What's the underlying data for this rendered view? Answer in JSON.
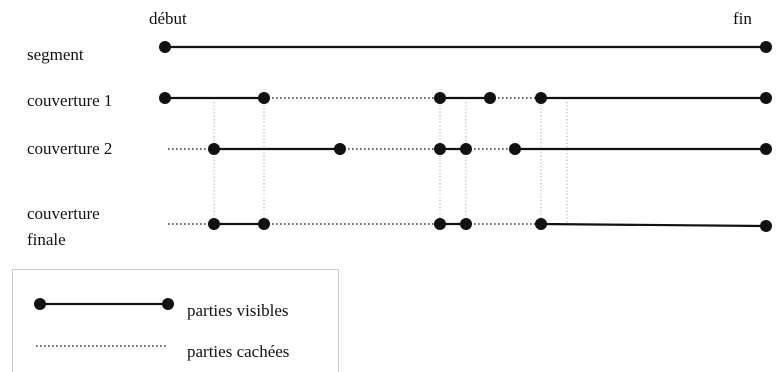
{
  "labels": {
    "start": "début",
    "end": "fin"
  },
  "rows": [
    {
      "key": "segment",
      "lines": [
        "segment"
      ]
    },
    {
      "key": "couverture-1",
      "lines": [
        "couverture 1"
      ]
    },
    {
      "key": "couverture-2",
      "lines": [
        "couverture 2"
      ]
    },
    {
      "key": "couverture-finale",
      "lines": [
        "couverture",
        "finale"
      ]
    }
  ],
  "legend": {
    "visible": "parties visibles",
    "hidden": "parties cachées"
  }
}
